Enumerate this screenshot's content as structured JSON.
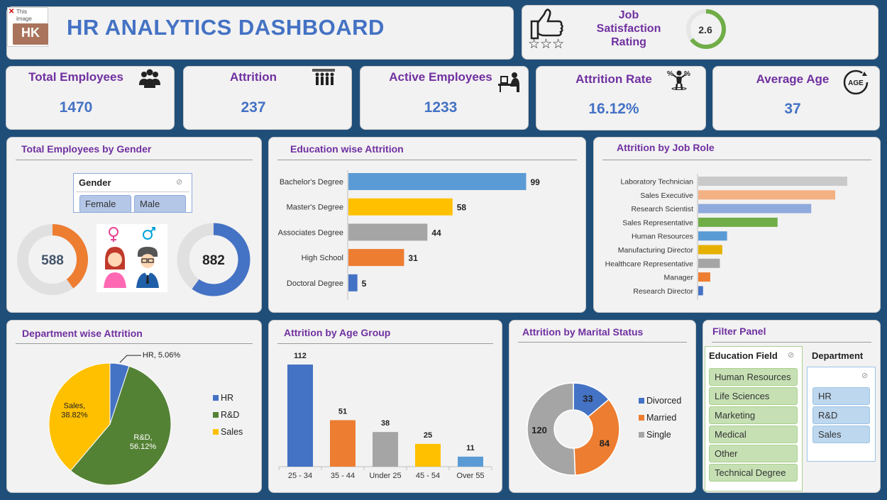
{
  "header": {
    "title": "HR ANALYTICS DASHBOARD",
    "logo_text": "HK",
    "broken_image_text": "This image cannot be displayed"
  },
  "job_satisfaction": {
    "label_line1": "Job",
    "label_line2": "Satisfaction",
    "label_line3": "Rating",
    "value": "2.6",
    "value_num": 2.6,
    "max": 4
  },
  "kpis": [
    {
      "label": "Total Employees",
      "value": "1470",
      "icon": "people-group-icon"
    },
    {
      "label": "Attrition",
      "value": "237",
      "icon": "people-leaving-icon"
    },
    {
      "label": "Active Employees",
      "value": "1233",
      "icon": "desk-worker-icon"
    },
    {
      "label": "Attrition Rate",
      "value": "16.12%",
      "icon": "percent-person-icon"
    },
    {
      "label": "Average Age",
      "value": "37",
      "icon": "age-icon"
    }
  ],
  "gender_panel": {
    "title": "Total Employees by Gender",
    "slicer_title": "Gender",
    "options": [
      "Female",
      "Male"
    ],
    "female_value": "588",
    "male_value": "882",
    "female": 588,
    "male": 882,
    "colors": {
      "female": "#ed7d31",
      "male": "#4472c4",
      "track": "#e0e0e0"
    }
  },
  "education_panel": {
    "title": "Education wise Attrition"
  },
  "jobrole_panel": {
    "title": "Attrition by Job Role"
  },
  "department_panel": {
    "title": "Department wise Attrition"
  },
  "age_panel": {
    "title": "Attrition by Age Group"
  },
  "marital_panel": {
    "title": "Attrition by Marital Status"
  },
  "filter_panel": {
    "title": "Filter Panel",
    "education_field": {
      "title": "Education Field",
      "options": [
        "Human Resources",
        "Life Sciences",
        "Marketing",
        "Medical",
        "Other",
        "Technical Degree"
      ]
    },
    "department": {
      "title": "Department",
      "options": [
        "HR",
        "R&D",
        "Sales"
      ]
    }
  },
  "chart_data": [
    {
      "id": "education",
      "type": "bar",
      "orientation": "horizontal",
      "title": "Education wise Attrition",
      "categories": [
        "Bachelor's Degree",
        "Master's Degree",
        "Associates Degree",
        "High School",
        "Doctoral Degree"
      ],
      "values": [
        99,
        58,
        44,
        31,
        5
      ],
      "colors": [
        "#5b9bd5",
        "#ffc000",
        "#a5a5a5",
        "#ed7d31",
        "#4472c4"
      ],
      "xlim": [
        0,
        100
      ]
    },
    {
      "id": "jobrole",
      "type": "bar",
      "orientation": "horizontal",
      "title": "Attrition by Job Role",
      "categories": [
        "Laboratory Technician",
        "Sales Executive",
        "Research Scientist",
        "Sales Representative",
        "Human Resources",
        "Manufacturing Director",
        "Healthcare Representative",
        "Manager",
        "Research Director"
      ],
      "values": [
        62,
        57,
        47,
        33,
        12,
        10,
        9,
        5,
        2
      ],
      "colors": [
        "#c9c9c9",
        "#f4b183",
        "#8faadc",
        "#70ad47",
        "#5b9bd5",
        "#e6b000",
        "#a5a5a5",
        "#ed7d31",
        "#4472c4"
      ],
      "xlim": [
        0,
        62
      ]
    },
    {
      "id": "department",
      "type": "pie",
      "title": "Department wise Attrition",
      "labels": [
        "HR",
        "R&D",
        "Sales"
      ],
      "values": [
        5.06,
        56.12,
        38.82
      ],
      "data_labels": [
        "HR, 5.06%",
        "R&D,\n56.12%",
        "Sales,\n38.82%"
      ],
      "colors": [
        "#4472c4",
        "#548235",
        "#ffc000"
      ],
      "legend_position": "right"
    },
    {
      "id": "age",
      "type": "bar",
      "title": "Attrition by Age Group",
      "categories": [
        "25 - 34",
        "35 - 44",
        "Under 25",
        "45 - 54",
        "Over 55"
      ],
      "values": [
        112,
        51,
        38,
        25,
        11
      ],
      "colors": [
        "#4472c4",
        "#ed7d31",
        "#a5a5a5",
        "#ffc000",
        "#5b9bd5"
      ],
      "ylim": [
        0,
        112
      ]
    },
    {
      "id": "marital",
      "type": "pie",
      "subtype": "donut",
      "title": "Attrition by Marital Status",
      "labels": [
        "Divorced",
        "Married",
        "Single"
      ],
      "values": [
        33,
        84,
        120
      ],
      "colors": [
        "#4472c4",
        "#ed7d31",
        "#a5a5a5"
      ],
      "legend_position": "right"
    }
  ]
}
